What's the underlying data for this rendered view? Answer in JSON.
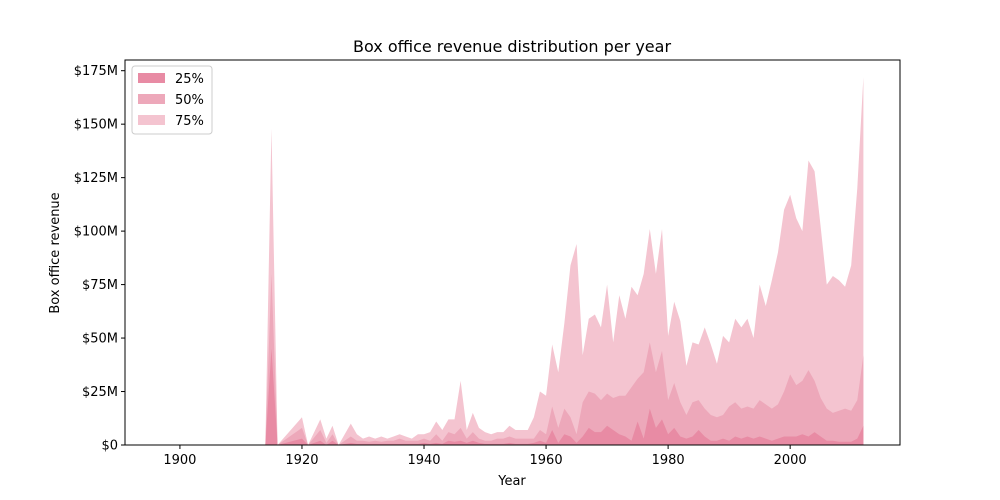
{
  "chart_data": {
    "type": "area",
    "title": "Box office revenue distribution per year",
    "xlabel": "Year",
    "ylabel": "Box office revenue",
    "xlim": [
      1891,
      2018
    ],
    "ylim": [
      0,
      180
    ],
    "x_ticks": [
      1900,
      1920,
      1940,
      1960,
      1980,
      2000
    ],
    "y_ticks": [
      0,
      25,
      50,
      75,
      100,
      125,
      150,
      175
    ],
    "y_tick_labels": [
      "$0",
      "$25M",
      "$50M",
      "$75M",
      "$100M",
      "$125M",
      "$150M",
      "$175M"
    ],
    "legend_position": "top-left",
    "grid": false,
    "series": [
      {
        "name": "25%",
        "color": "#e88ba4",
        "points": [
          [
            1914,
            0
          ],
          [
            1915,
            45
          ],
          [
            1916,
            0
          ],
          [
            1920,
            3
          ],
          [
            1921,
            0
          ],
          [
            1923,
            2
          ],
          [
            1924,
            0
          ],
          [
            1925,
            2
          ],
          [
            1926,
            0
          ],
          [
            1928,
            1
          ],
          [
            1929,
            0.5
          ],
          [
            1930,
            0.5
          ],
          [
            1931,
            0.5
          ],
          [
            1932,
            0.5
          ],
          [
            1933,
            0.5
          ],
          [
            1934,
            0.5
          ],
          [
            1935,
            0.5
          ],
          [
            1936,
            0.5
          ],
          [
            1937,
            0.5
          ],
          [
            1938,
            0.5
          ],
          [
            1939,
            0.5
          ],
          [
            1940,
            1
          ],
          [
            1941,
            0.5
          ],
          [
            1942,
            1
          ],
          [
            1943,
            0.5
          ],
          [
            1944,
            2
          ],
          [
            1945,
            1.5
          ],
          [
            1946,
            2
          ],
          [
            1947,
            1
          ],
          [
            1948,
            2
          ],
          [
            1949,
            1
          ],
          [
            1950,
            0.5
          ],
          [
            1951,
            0.5
          ],
          [
            1952,
            0.5
          ],
          [
            1953,
            0.5
          ],
          [
            1954,
            1
          ],
          [
            1955,
            0.5
          ],
          [
            1956,
            0.5
          ],
          [
            1957,
            0.5
          ],
          [
            1958,
            1
          ],
          [
            1959,
            2
          ],
          [
            1960,
            1
          ],
          [
            1961,
            7
          ],
          [
            1962,
            1
          ],
          [
            1963,
            5
          ],
          [
            1964,
            4
          ],
          [
            1965,
            1
          ],
          [
            1966,
            4
          ],
          [
            1967,
            8
          ],
          [
            1968,
            6
          ],
          [
            1969,
            6
          ],
          [
            1970,
            9
          ],
          [
            1971,
            7
          ],
          [
            1972,
            5
          ],
          [
            1973,
            4
          ],
          [
            1974,
            2
          ],
          [
            1975,
            11
          ],
          [
            1976,
            3
          ],
          [
            1977,
            17
          ],
          [
            1978,
            8
          ],
          [
            1979,
            12
          ],
          [
            1980,
            5
          ],
          [
            1981,
            8
          ],
          [
            1982,
            4
          ],
          [
            1983,
            3
          ],
          [
            1984,
            4
          ],
          [
            1985,
            7
          ],
          [
            1986,
            4
          ],
          [
            1987,
            2
          ],
          [
            1988,
            2
          ],
          [
            1989,
            3
          ],
          [
            1990,
            2
          ],
          [
            1991,
            4
          ],
          [
            1992,
            3
          ],
          [
            1993,
            4
          ],
          [
            1994,
            3
          ],
          [
            1995,
            4
          ],
          [
            1996,
            3
          ],
          [
            1997,
            2
          ],
          [
            1998,
            3
          ],
          [
            1999,
            4
          ],
          [
            2000,
            4
          ],
          [
            2001,
            4
          ],
          [
            2002,
            5
          ],
          [
            2003,
            4
          ],
          [
            2004,
            6
          ],
          [
            2005,
            4
          ],
          [
            2006,
            2
          ],
          [
            2007,
            2
          ],
          [
            2008,
            1.5
          ],
          [
            2009,
            1.5
          ],
          [
            2010,
            1.5
          ],
          [
            2011,
            3
          ],
          [
            2012,
            9
          ]
        ]
      },
      {
        "name": "50%",
        "color": "#eda8ba",
        "points": [
          [
            1914,
            0
          ],
          [
            1915,
            80
          ],
          [
            1916,
            0
          ],
          [
            1920,
            8
          ],
          [
            1921,
            0
          ],
          [
            1923,
            7
          ],
          [
            1924,
            1
          ],
          [
            1925,
            5
          ],
          [
            1926,
            0
          ],
          [
            1928,
            4
          ],
          [
            1929,
            2
          ],
          [
            1930,
            2
          ],
          [
            1931,
            1.5
          ],
          [
            1932,
            2
          ],
          [
            1933,
            1.5
          ],
          [
            1934,
            2
          ],
          [
            1935,
            2
          ],
          [
            1936,
            3
          ],
          [
            1937,
            2
          ],
          [
            1938,
            2
          ],
          [
            1939,
            2
          ],
          [
            1940,
            3
          ],
          [
            1941,
            2
          ],
          [
            1942,
            5
          ],
          [
            1943,
            2
          ],
          [
            1944,
            6
          ],
          [
            1945,
            5
          ],
          [
            1946,
            8
          ],
          [
            1947,
            3
          ],
          [
            1948,
            6
          ],
          [
            1949,
            3
          ],
          [
            1950,
            2
          ],
          [
            1951,
            2
          ],
          [
            1952,
            3
          ],
          [
            1953,
            3
          ],
          [
            1954,
            4
          ],
          [
            1955,
            3
          ],
          [
            1956,
            3
          ],
          [
            1957,
            3
          ],
          [
            1958,
            3
          ],
          [
            1959,
            7
          ],
          [
            1960,
            5
          ],
          [
            1961,
            18
          ],
          [
            1962,
            8
          ],
          [
            1963,
            17
          ],
          [
            1964,
            13
          ],
          [
            1965,
            5
          ],
          [
            1966,
            20
          ],
          [
            1967,
            25
          ],
          [
            1968,
            24
          ],
          [
            1969,
            21
          ],
          [
            1970,
            24
          ],
          [
            1971,
            22
          ],
          [
            1972,
            23
          ],
          [
            1973,
            23
          ],
          [
            1974,
            27
          ],
          [
            1975,
            31
          ],
          [
            1976,
            34
          ],
          [
            1977,
            48
          ],
          [
            1978,
            34
          ],
          [
            1979,
            44
          ],
          [
            1980,
            21
          ],
          [
            1981,
            29
          ],
          [
            1982,
            20
          ],
          [
            1983,
            14
          ],
          [
            1984,
            20
          ],
          [
            1985,
            21
          ],
          [
            1986,
            17
          ],
          [
            1987,
            14
          ],
          [
            1988,
            13
          ],
          [
            1989,
            14
          ],
          [
            1990,
            18
          ],
          [
            1991,
            20
          ],
          [
            1992,
            17
          ],
          [
            1993,
            18
          ],
          [
            1994,
            17
          ],
          [
            1995,
            21
          ],
          [
            1996,
            19
          ],
          [
            1997,
            17
          ],
          [
            1998,
            19
          ],
          [
            1999,
            25
          ],
          [
            2000,
            33
          ],
          [
            2001,
            28
          ],
          [
            2002,
            30
          ],
          [
            2003,
            35
          ],
          [
            2004,
            30
          ],
          [
            2005,
            22
          ],
          [
            2006,
            17
          ],
          [
            2007,
            15
          ],
          [
            2008,
            16
          ],
          [
            2009,
            17
          ],
          [
            2010,
            16
          ],
          [
            2011,
            21
          ],
          [
            2012,
            42
          ]
        ]
      },
      {
        "name": "75%",
        "color": "#f4c4d0",
        "points": [
          [
            1914,
            0
          ],
          [
            1915,
            148
          ],
          [
            1916,
            0
          ],
          [
            1920,
            13
          ],
          [
            1921,
            0
          ],
          [
            1923,
            12
          ],
          [
            1924,
            3
          ],
          [
            1925,
            9
          ],
          [
            1926,
            0
          ],
          [
            1928,
            10
          ],
          [
            1929,
            5
          ],
          [
            1930,
            3
          ],
          [
            1931,
            4
          ],
          [
            1932,
            3
          ],
          [
            1933,
            4
          ],
          [
            1934,
            3
          ],
          [
            1935,
            4
          ],
          [
            1936,
            5
          ],
          [
            1937,
            4
          ],
          [
            1938,
            3
          ],
          [
            1939,
            5
          ],
          [
            1940,
            5
          ],
          [
            1941,
            6
          ],
          [
            1942,
            11
          ],
          [
            1943,
            7
          ],
          [
            1944,
            12
          ],
          [
            1945,
            12
          ],
          [
            1946,
            30
          ],
          [
            1947,
            7
          ],
          [
            1948,
            15
          ],
          [
            1949,
            8
          ],
          [
            1950,
            6
          ],
          [
            1951,
            5
          ],
          [
            1952,
            6
          ],
          [
            1953,
            6
          ],
          [
            1954,
            9
          ],
          [
            1955,
            7
          ],
          [
            1956,
            7
          ],
          [
            1957,
            7
          ],
          [
            1958,
            13
          ],
          [
            1959,
            25
          ],
          [
            1960,
            23
          ],
          [
            1961,
            47
          ],
          [
            1962,
            34
          ],
          [
            1963,
            57
          ],
          [
            1964,
            84
          ],
          [
            1965,
            94
          ],
          [
            1966,
            42
          ],
          [
            1967,
            59
          ],
          [
            1968,
            61
          ],
          [
            1969,
            55
          ],
          [
            1970,
            75
          ],
          [
            1971,
            48
          ],
          [
            1972,
            70
          ],
          [
            1973,
            59
          ],
          [
            1974,
            74
          ],
          [
            1975,
            70
          ],
          [
            1976,
            80
          ],
          [
            1977,
            101
          ],
          [
            1978,
            80
          ],
          [
            1979,
            101
          ],
          [
            1980,
            51
          ],
          [
            1981,
            67
          ],
          [
            1982,
            58
          ],
          [
            1983,
            37
          ],
          [
            1984,
            48
          ],
          [
            1985,
            47
          ],
          [
            1986,
            55
          ],
          [
            1987,
            47
          ],
          [
            1988,
            38
          ],
          [
            1989,
            51
          ],
          [
            1990,
            48
          ],
          [
            1991,
            59
          ],
          [
            1992,
            55
          ],
          [
            1993,
            59
          ],
          [
            1994,
            50
          ],
          [
            1995,
            75
          ],
          [
            1996,
            65
          ],
          [
            1997,
            77
          ],
          [
            1998,
            90
          ],
          [
            1999,
            110
          ],
          [
            2000,
            117
          ],
          [
            2001,
            106
          ],
          [
            2002,
            100
          ],
          [
            2003,
            133
          ],
          [
            2004,
            128
          ],
          [
            2005,
            102
          ],
          [
            2006,
            75
          ],
          [
            2007,
            79
          ],
          [
            2008,
            77
          ],
          [
            2009,
            74
          ],
          [
            2010,
            84
          ],
          [
            2011,
            120
          ],
          [
            2012,
            172
          ]
        ]
      }
    ]
  }
}
